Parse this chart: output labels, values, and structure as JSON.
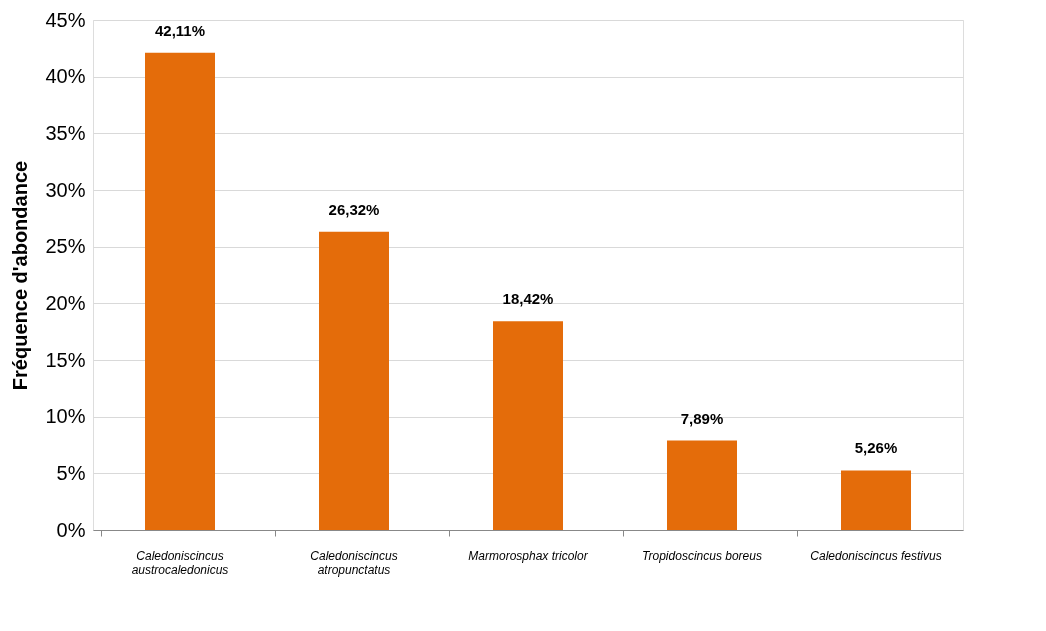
{
  "chart_data": {
    "type": "bar",
    "ylabel": "Fréquence d'abondance",
    "categories": [
      "Caledoniscincus austrocaledonicus",
      "Caledoniscincus atropunctatus",
      "Marmorosphax tricolor",
      "Tropidoscincus boreus",
      "Caledoniscincus festivus"
    ],
    "values": [
      42.11,
      26.32,
      18.42,
      7.89,
      5.26
    ],
    "value_labels": [
      "42,11%",
      "26,32%",
      "18,42%",
      "7,89%",
      "5,26%"
    ],
    "color": "#e46c0a",
    "ylim": [
      0,
      45
    ],
    "yticks": [
      {
        "value": 0,
        "label": "0%"
      },
      {
        "value": 5,
        "label": "5%"
      },
      {
        "value": 10,
        "label": "10%"
      },
      {
        "value": 15,
        "label": "15%"
      },
      {
        "value": 20,
        "label": "20%"
      },
      {
        "value": 25,
        "label": "25%"
      },
      {
        "value": 30,
        "label": "30%"
      },
      {
        "value": 35,
        "label": "35%"
      },
      {
        "value": 40,
        "label": "40%"
      },
      {
        "value": 45,
        "label": "45%"
      }
    ],
    "grid": "y"
  }
}
